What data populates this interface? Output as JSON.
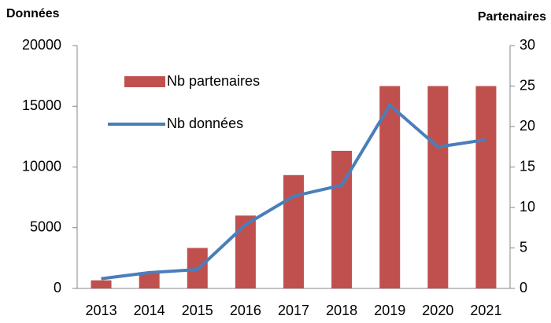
{
  "chart_data": {
    "type": "bar",
    "ylabel": "Données",
    "y2label": "Partenaires",
    "categories": [
      "2013",
      "2014",
      "2015",
      "2016",
      "2017",
      "2018",
      "2019",
      "2020",
      "2021"
    ],
    "series": [
      {
        "name": "Nb partenaires",
        "type": "bar",
        "axis": "y2",
        "color": "#c0504d",
        "values": [
          1,
          2,
          5,
          9,
          14,
          17,
          25,
          25,
          25
        ]
      },
      {
        "name": "Nb données",
        "type": "line",
        "axis": "y",
        "color": "#4a7ebb",
        "values": [
          800,
          1300,
          1550,
          5250,
          7600,
          8500,
          15100,
          11650,
          12250
        ]
      }
    ],
    "ylim": [
      0,
      20000
    ],
    "yticks": [
      0,
      5000,
      10000,
      15000,
      20000
    ],
    "y2lim": [
      0,
      30
    ],
    "y2ticks": [
      0,
      5,
      10,
      15,
      20,
      25,
      30
    ],
    "legend": "upper left",
    "grid": false
  }
}
